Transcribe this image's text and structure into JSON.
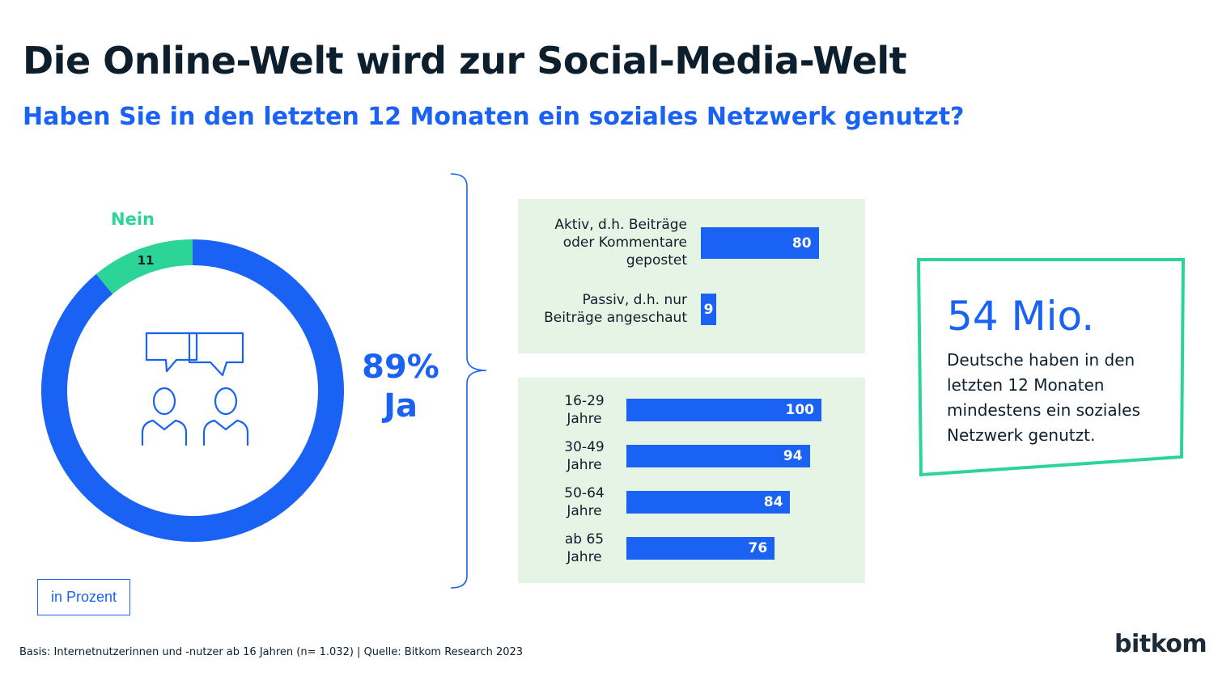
{
  "header": {
    "title": "Die Online-Welt wird zur Social-Media-Welt",
    "subtitle": "Haben Sie in den letzten 12 Monaten ein soziales Netzwerk genutzt?"
  },
  "colors": {
    "blue": "#1a62f3",
    "green": "#2cd498",
    "panel": "#e6f4e5",
    "dark": "#0d1f2d"
  },
  "icons": [
    "speech-bubble-icon",
    "person-icon"
  ],
  "donut": {
    "ja_pct": "89%",
    "ja_label": "Ja",
    "nein_label": "Nein",
    "nein_value": "11"
  },
  "unit_label": "in Prozent",
  "chart_data": [
    {
      "type": "pie",
      "categories": [
        "Ja",
        "Nein"
      ],
      "values": [
        89,
        11
      ]
    },
    {
      "type": "bar",
      "orientation": "horizontal",
      "categories": [
        [
          "Aktiv, d.h. Beiträge",
          "oder Kommentare",
          "gepostet"
        ],
        [
          "Passiv, d.h. nur",
          "Beiträge angeschaut"
        ]
      ],
      "values": [
        80,
        9
      ]
    },
    {
      "type": "bar",
      "orientation": "horizontal",
      "categories": [
        [
          "16-29",
          "Jahre"
        ],
        [
          "30-49",
          "Jahre"
        ],
        [
          "50-64",
          "Jahre"
        ],
        [
          "ab 65",
          "Jahre"
        ]
      ],
      "values": [
        100,
        94,
        84,
        76
      ]
    }
  ],
  "callout": {
    "big": "54 Mio.",
    "text": "Deutsche haben in den letzten 12 Monaten mindestens ein soziales Netzwerk genutzt."
  },
  "footnote": "Basis: Internetnutzerinnen und -nutzer ab 16 Jahren (n= 1.032) | Quelle: Bitkom Research 2023",
  "logo": "bitkom"
}
